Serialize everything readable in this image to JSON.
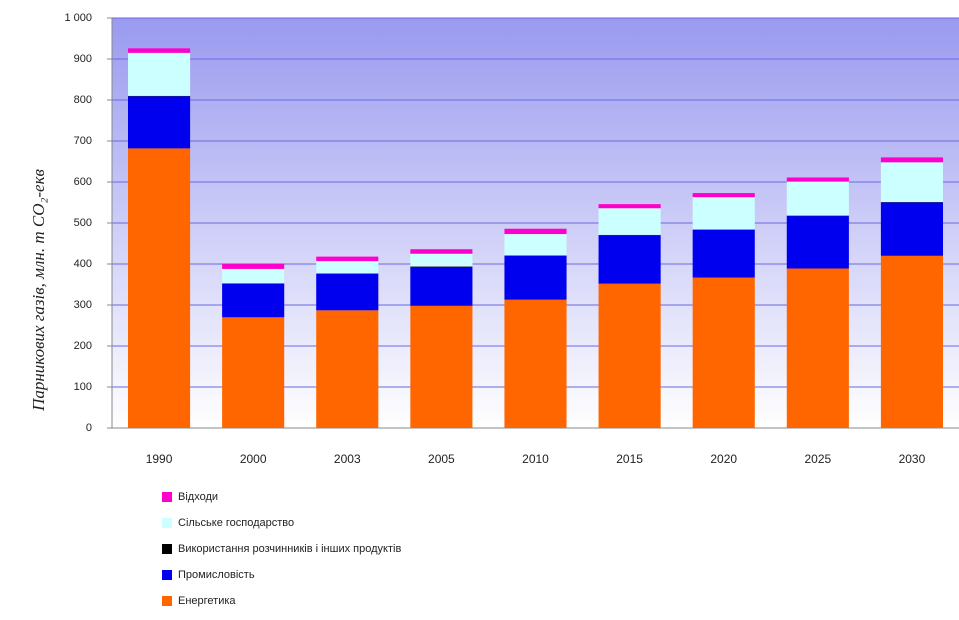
{
  "chart_data": {
    "type": "bar",
    "stacked": true,
    "ylabel": "Парникових газів, млн. т CO₂-екв",
    "categories": [
      "1990",
      "2000",
      "2003",
      "2005",
      "2010",
      "2015",
      "2020",
      "2025",
      "2030"
    ],
    "series": [
      {
        "name": "Енергетика",
        "color": "#ff6600",
        "values": [
          682,
          270,
          287,
          298,
          313,
          352,
          367,
          389,
          420
        ]
      },
      {
        "name": "Промисловість",
        "color": "#0000ee",
        "values": [
          127,
          82,
          89,
          95,
          107,
          118,
          116,
          128,
          130
        ]
      },
      {
        "name": "Використання розчинників і інших продуктів",
        "color": "#000000",
        "values": [
          1,
          1,
          1,
          1,
          1,
          1,
          1,
          1,
          1
        ]
      },
      {
        "name": "Сільське господарство",
        "color": "#ccffff",
        "values": [
          105,
          35,
          30,
          31,
          52,
          65,
          79,
          83,
          97
        ]
      },
      {
        "name": "Відходи",
        "color": "#ff00cc",
        "values": [
          11,
          13,
          11,
          11,
          13,
          10,
          10,
          10,
          12
        ]
      }
    ],
    "ylim": [
      0,
      1000
    ],
    "yticks": [
      0,
      100,
      200,
      300,
      400,
      500,
      600,
      700,
      800,
      900,
      {
        "value": 1000,
        "label": "1 000"
      }
    ],
    "grid": true
  }
}
